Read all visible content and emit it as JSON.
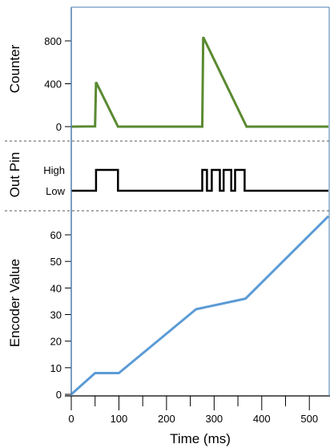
{
  "chart_data": [
    {
      "type": "line",
      "ylabel": "Counter",
      "ylim": [
        0,
        800
      ],
      "yticks": [
        0,
        400,
        800
      ],
      "xlim": [
        0,
        540
      ],
      "color": "#5b8a32",
      "points": [
        {
          "x": 0,
          "y": 0
        },
        {
          "x": 50,
          "y": 2
        },
        {
          "x": 52,
          "y": 415
        },
        {
          "x": 98,
          "y": 0
        },
        {
          "x": 275,
          "y": 0
        },
        {
          "x": 277,
          "y": 835
        },
        {
          "x": 368,
          "y": 0
        },
        {
          "x": 540,
          "y": 0
        }
      ]
    },
    {
      "type": "line",
      "ylabel": "Out Pin",
      "yticks": [
        "Low",
        "High"
      ],
      "xlim": [
        0,
        540
      ],
      "color": "#000000",
      "points": [
        {
          "x": 0,
          "y": "Low"
        },
        {
          "x": 52,
          "y": "Low"
        },
        {
          "x": 52,
          "y": "High"
        },
        {
          "x": 98,
          "y": "High"
        },
        {
          "x": 98,
          "y": "Low"
        },
        {
          "x": 275,
          "y": "Low"
        },
        {
          "x": 275,
          "y": "High"
        },
        {
          "x": 285,
          "y": "High"
        },
        {
          "x": 285,
          "y": "Low"
        },
        {
          "x": 295,
          "y": "Low"
        },
        {
          "x": 295,
          "y": "High"
        },
        {
          "x": 312,
          "y": "High"
        },
        {
          "x": 312,
          "y": "Low"
        },
        {
          "x": 320,
          "y": "Low"
        },
        {
          "x": 320,
          "y": "High"
        },
        {
          "x": 336,
          "y": "High"
        },
        {
          "x": 336,
          "y": "Low"
        },
        {
          "x": 344,
          "y": "Low"
        },
        {
          "x": 344,
          "y": "High"
        },
        {
          "x": 364,
          "y": "High"
        },
        {
          "x": 364,
          "y": "Low"
        },
        {
          "x": 540,
          "y": "Low"
        }
      ]
    },
    {
      "type": "line",
      "ylabel": "Encoder Value",
      "xlabel": "Time (ms)",
      "xlim": [
        0,
        540
      ],
      "ylim": [
        0,
        66
      ],
      "yticks": [
        0,
        10,
        20,
        30,
        40,
        50,
        60
      ],
      "xticks": [
        0,
        100,
        200,
        300,
        400,
        500
      ],
      "color": "#5b9bd5",
      "points": [
        {
          "x": 0,
          "y": 0
        },
        {
          "x": 50,
          "y": 8
        },
        {
          "x": 100,
          "y": 8
        },
        {
          "x": 262,
          "y": 32
        },
        {
          "x": 366,
          "y": 36
        },
        {
          "x": 540,
          "y": 67
        }
      ]
    }
  ]
}
